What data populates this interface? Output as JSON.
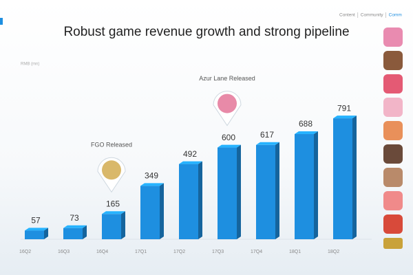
{
  "nav": [
    "Content",
    "Community",
    "Comm"
  ],
  "chart_data": {
    "type": "bar",
    "title": "Robust game revenue growth and strong pipeline",
    "y_label": "RMB (mn)",
    "categories": [
      "16Q2",
      "16Q3",
      "16Q4",
      "17Q1",
      "17Q2",
      "17Q3",
      "17Q4",
      "18Q1",
      "18Q2"
    ],
    "values": [
      57,
      73,
      165,
      349,
      492,
      600,
      617,
      688,
      791
    ],
    "color": "#1e8fe0",
    "ylim": [
      0,
      850
    ],
    "annotations": [
      {
        "text": "FGO Released",
        "category": "16Q4"
      },
      {
        "text": "Azur Lane Released",
        "category": "17Q3"
      }
    ]
  }
}
